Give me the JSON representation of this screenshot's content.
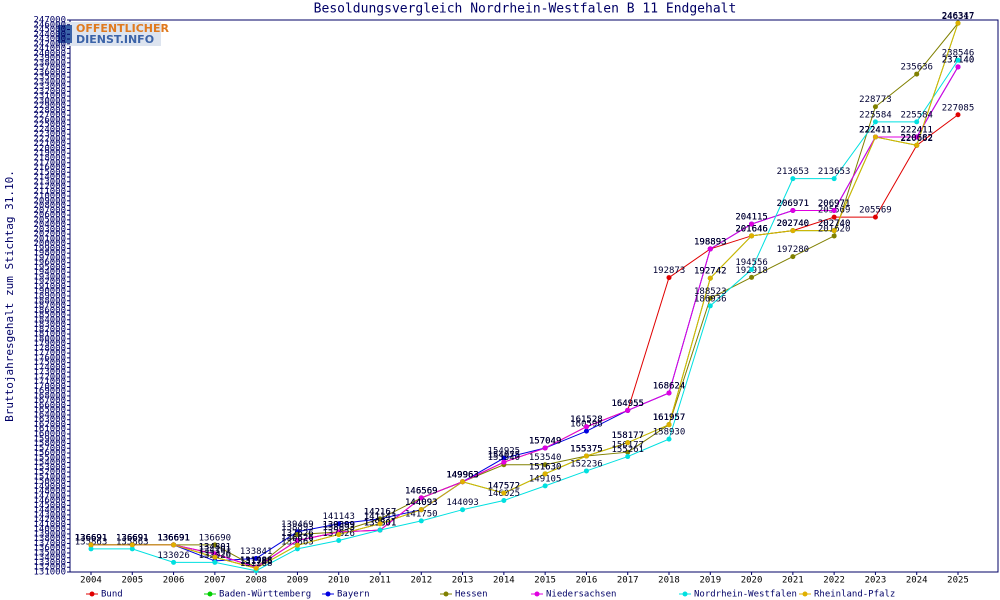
{
  "chart_data": {
    "type": "line",
    "title": "Besoldungsvergleich Nordrhein-Westfalen B 11 Endgehalt",
    "y_label": "Bruttojahresgehalt zum Stichtag 31.10.",
    "logo": [
      "OFFENTLICHER",
      "DIENST.INFO"
    ],
    "categories": [
      "2004",
      "2005",
      "2006",
      "2007",
      "2008",
      "2009",
      "2010",
      "2011",
      "2012",
      "2013",
      "2014",
      "2015",
      "2016",
      "2017",
      "2018",
      "2019",
      "2020",
      "2021",
      "2022",
      "2023",
      "2024",
      "2025"
    ],
    "ylim": [
      131000,
      247000
    ],
    "yticks": [
      131000,
      132000,
      133000,
      134000,
      135000,
      136000,
      137000,
      138000,
      139000,
      140000,
      141000,
      142000,
      143000,
      144000,
      145000,
      146000,
      147000,
      148000,
      149000,
      150000,
      151000,
      152000,
      153000,
      154000,
      155000,
      156000,
      157000,
      158000,
      159000,
      160000,
      161000,
      162000,
      163000,
      164000,
      165000,
      166000,
      167000,
      168000,
      169000,
      170000,
      171000,
      172000,
      173000,
      174000,
      175000,
      176000,
      177000,
      178000,
      179000,
      180000,
      181000,
      182000,
      183000,
      184000,
      185000,
      186000,
      187000,
      188000,
      189000,
      190000,
      191000,
      192000,
      193000,
      194000,
      195000,
      196000,
      197000,
      198000,
      199000,
      200000,
      201000,
      202000,
      203000,
      204000,
      205000,
      206000,
      207000,
      208000,
      209000,
      210000,
      211000,
      212000,
      213000,
      214000,
      215000,
      216000,
      217000,
      218000,
      219000,
      220000,
      221000,
      222000,
      223000,
      224000,
      225000,
      226000,
      227000,
      228000,
      229000,
      230000,
      231000,
      232000,
      233000,
      234000,
      235000,
      236000,
      237000,
      238000,
      239000,
      240000,
      241000,
      242000,
      243000,
      244000,
      245000,
      246000,
      247000
    ],
    "series": [
      {
        "name": "Bund",
        "color": "#e00000",
        "values": [
          136691,
          136691,
          136691,
          134801,
          131988,
          137626,
          139399,
          139801,
          146569,
          149963,
          154075,
          157049,
          161528,
          164955,
          192873,
          198893,
          201646,
          202740,
          205569,
          205569,
          220662,
          227085
        ]
      },
      {
        "name": "Baden-Württemberg",
        "color": "#00d000",
        "values": [
          136691,
          136691,
          136691,
          134101,
          131786,
          136626,
          138893,
          141143,
          144093,
          149963,
          147572,
          151630,
          155375,
          158177,
          161957,
          192742,
          201646,
          202740,
          202740,
          222411,
          220682,
          246347
        ]
      },
      {
        "name": "Bayern",
        "color": "#0000e0",
        "values": [
          136691,
          136691,
          136691,
          133326,
          133841,
          139469,
          141143,
          142167,
          144093,
          149963,
          154925,
          157049,
          160596,
          164955,
          168624,
          198893,
          204115,
          206971,
          206971,
          222411,
          222411,
          237140
        ]
      },
      {
        "name": "Hessen",
        "color": "#808000",
        "values": [
          136691,
          136691,
          136691,
          136690,
          131988,
          138893,
          139399,
          142167,
          146569,
          149963,
          153540,
          153540,
          155375,
          156177,
          161957,
          188523,
          192918,
          197280,
          201620,
          228773,
          235636,
          246317
        ]
      },
      {
        "name": "Niedersachsen",
        "color": "#e000e0",
        "values": [
          136691,
          136691,
          136691,
          134801,
          131988,
          137626,
          139399,
          139801,
          146569,
          149963,
          154075,
          157049,
          161528,
          164955,
          168624,
          198893,
          204115,
          206971,
          206971,
          222411,
          222411,
          237140
        ]
      },
      {
        "name": "Nordrhein-Westfalen",
        "color": "#00e0e0",
        "values": [
          135863,
          135863,
          133026,
          133026,
          131268,
          135863,
          137626,
          139801,
          141750,
          144093,
          146025,
          149105,
          152236,
          155261,
          158930,
          186936,
          194556,
          213653,
          213653,
          225584,
          225584,
          238546
        ]
      },
      {
        "name": "Rheinland-Pfalz",
        "color": "#e0b000",
        "values": [
          136691,
          136691,
          136691,
          134101,
          131786,
          136626,
          138893,
          141143,
          144093,
          149963,
          147572,
          151630,
          155375,
          158177,
          161957,
          192742,
          201646,
          202740,
          202740,
          222411,
          220682,
          246347
        ]
      }
    ]
  }
}
